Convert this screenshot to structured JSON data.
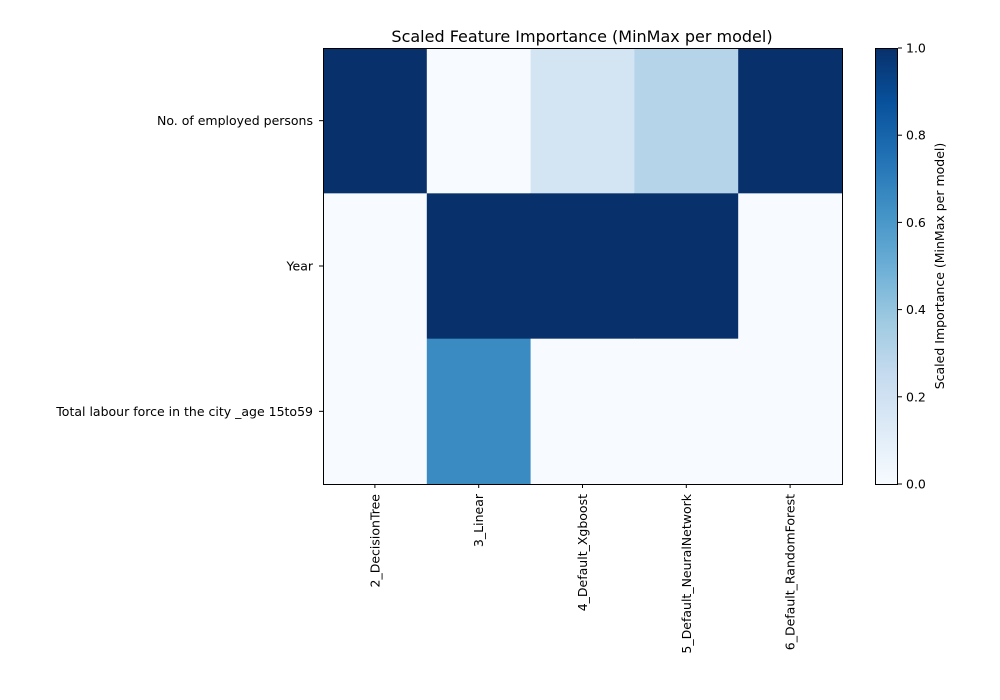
{
  "chart_data": {
    "type": "heatmap",
    "title": "Scaled Feature Importance (MinMax per model)",
    "rows": [
      "No. of employed persons",
      "Year",
      "Total labour force in the city _age 15to59"
    ],
    "columns": [
      "2_DecisionTree",
      "3_Linear",
      "4_Default_Xgboost",
      "5_Default_NeuralNetwork",
      "6_Default_RandomForest"
    ],
    "values": [
      [
        1.0,
        0.0,
        0.18,
        0.3,
        1.0
      ],
      [
        0.0,
        1.0,
        1.0,
        1.0,
        0.0
      ],
      [
        0.0,
        0.65,
        0.0,
        0.0,
        0.0
      ]
    ],
    "colormap": "Blues",
    "colorbar": {
      "label": "Scaled Importance (MinMax per model)",
      "range": [
        0.0,
        1.0
      ],
      "ticks": [
        "0.0",
        "0.2",
        "0.4",
        "0.6",
        "0.8",
        "1.0"
      ]
    },
    "grid": false
  }
}
